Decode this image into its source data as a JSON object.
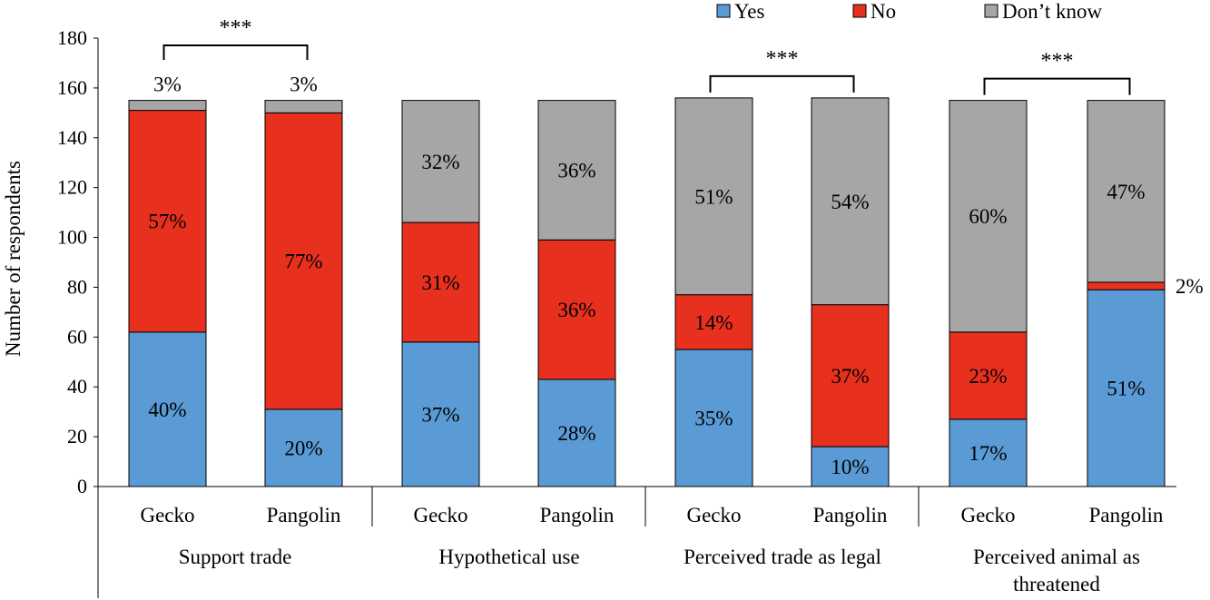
{
  "chart_data": {
    "type": "bar",
    "stacked": true,
    "ylabel": "Number of respondents",
    "ylim": [
      0,
      180
    ],
    "yticks": [
      0,
      20,
      40,
      60,
      80,
      100,
      120,
      140,
      160,
      180
    ],
    "legend": {
      "placement": "top-right",
      "entries": [
        {
          "name": "Yes",
          "color": "#5b9bd5"
        },
        {
          "name": "No",
          "color": "#e8301f"
        },
        {
          "name": "Don’t know",
          "color": "#a6a6a6"
        }
      ]
    },
    "groups": [
      {
        "label": "Support trade",
        "label_lines": [
          "Support trade"
        ],
        "significance": "***",
        "sig_bracket": "above"
      },
      {
        "label": "Hypothetical use",
        "label_lines": [
          "Hypothetical use"
        ],
        "significance": "",
        "sig_bracket": ""
      },
      {
        "label": "Perceived trade as legal",
        "label_lines": [
          "Perceived trade as legal"
        ],
        "significance": "***",
        "sig_bracket": "above"
      },
      {
        "label": "Perceived animal as threatened",
        "label_lines": [
          "Perceived animal as",
          "threatened"
        ],
        "significance": "***",
        "sig_bracket": "above"
      }
    ],
    "bars": [
      {
        "group": 0,
        "category": "Gecko",
        "yes": 62,
        "no": 89,
        "dont_know": 4,
        "yes_label": "40%",
        "no_label": "57%",
        "dk_label": "3%"
      },
      {
        "group": 0,
        "category": "Pangolin",
        "yes": 31,
        "no": 119,
        "dont_know": 5,
        "yes_label": "20%",
        "no_label": "77%",
        "dk_label": "3%"
      },
      {
        "group": 1,
        "category": "Gecko",
        "yes": 58,
        "no": 48,
        "dont_know": 49,
        "yes_label": "37%",
        "no_label": "31%",
        "dk_label": "32%"
      },
      {
        "group": 1,
        "category": "Pangolin",
        "yes": 43,
        "no": 56,
        "dont_know": 56,
        "yes_label": "28%",
        "no_label": "36%",
        "dk_label": "36%"
      },
      {
        "group": 2,
        "category": "Gecko",
        "yes": 55,
        "no": 22,
        "dont_know": 79,
        "yes_label": "35%",
        "no_label": "14%",
        "dk_label": "51%"
      },
      {
        "group": 2,
        "category": "Pangolin",
        "yes": 16,
        "no": 57,
        "dont_know": 83,
        "yes_label": "10%",
        "no_label": "37%",
        "dk_label": "54%"
      },
      {
        "group": 3,
        "category": "Gecko",
        "yes": 27,
        "no": 35,
        "dont_know": 93,
        "yes_label": "17%",
        "no_label": "23%",
        "dk_label": "60%"
      },
      {
        "group": 3,
        "category": "Pangolin",
        "yes": 79,
        "no": 3,
        "dont_know": 73,
        "yes_label": "51%",
        "no_label": "2%",
        "dk_label": "47%"
      }
    ]
  }
}
